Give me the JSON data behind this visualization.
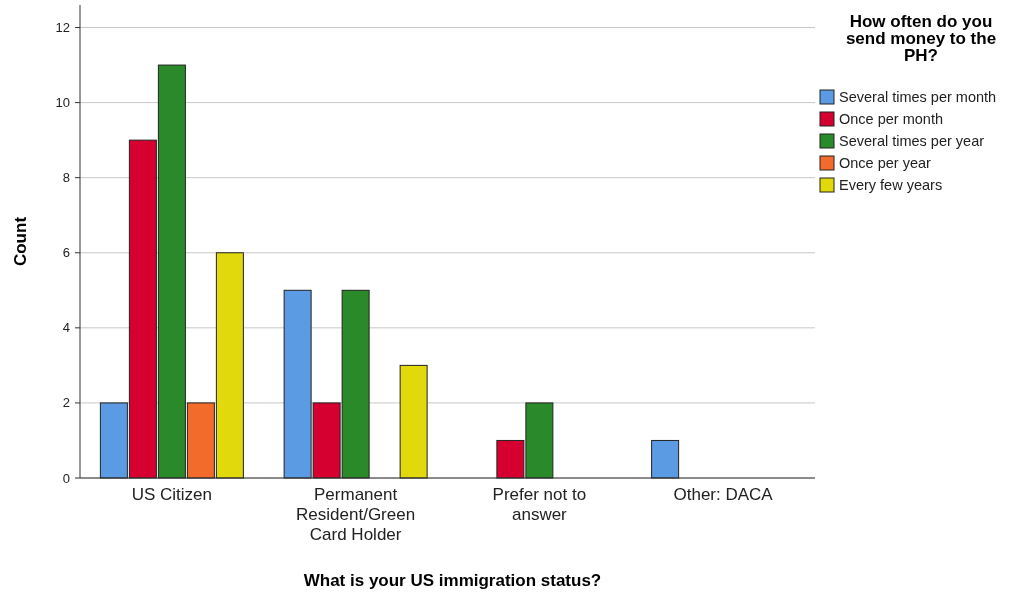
{
  "chart_data": {
    "type": "bar",
    "xlabel": "What is your US immigration status?",
    "ylabel": "Count",
    "legend_title": "How often do you send money to the PH?",
    "categories": [
      "US Citizen",
      "Permanent Resident/Green Card Holder",
      "Prefer not to answer",
      "Other: DACA"
    ],
    "series": [
      {
        "name": "Several times per month",
        "color": "#5a9be3",
        "values": [
          2,
          5,
          null,
          1
        ]
      },
      {
        "name": "Once per month",
        "color": "#d5002f",
        "values": [
          9,
          2,
          1,
          null
        ]
      },
      {
        "name": "Several times per year",
        "color": "#2a8a2a",
        "values": [
          11,
          5,
          2,
          null
        ]
      },
      {
        "name": "Once per year",
        "color": "#f26b2a",
        "values": [
          2,
          null,
          null,
          null
        ]
      },
      {
        "name": "Every few years",
        "color": "#e2d90c",
        "values": [
          6,
          3,
          null,
          null
        ]
      }
    ],
    "ylim": [
      0,
      12.6
    ],
    "yticks": [
      0,
      2,
      4,
      6,
      8,
      10,
      12
    ],
    "grid": "y",
    "legend": "top right"
  }
}
